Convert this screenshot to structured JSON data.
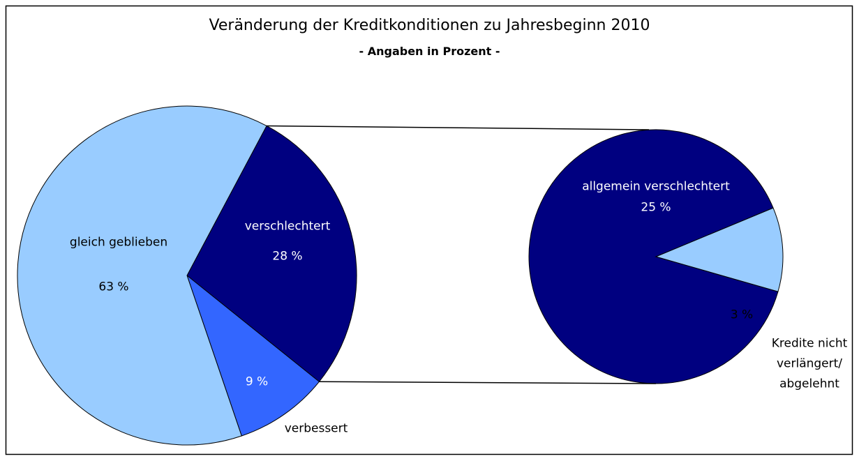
{
  "chart_data": {
    "type": "pie-of-pie",
    "title": "Veränderung der Kreditkonditionen zu Jahresbeginn 2010",
    "subtitle": "- Angaben in Prozent -",
    "categories": [
      "verschlechtert",
      "verbessert",
      "gleich geblieben"
    ],
    "values": [
      28,
      9,
      63
    ],
    "value_labels": [
      "28 %",
      "9 %",
      "63 %"
    ],
    "colors": [
      "#000080",
      "#3366ff",
      "#99ccff"
    ],
    "detail": {
      "categories": [
        "allgemein verschlechtert",
        "Kredite nicht verlängert/ abgelehnt"
      ],
      "values": [
        25,
        3
      ],
      "value_labels": [
        "25 %",
        "3 %"
      ],
      "colors": [
        "#000080",
        "#99ccff"
      ]
    }
  }
}
